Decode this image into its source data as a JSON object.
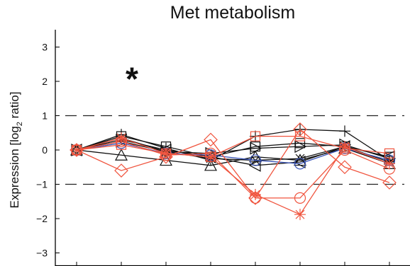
{
  "chart_data": {
    "type": "line",
    "title": "Met metabolism",
    "ylabel_main": "Expression [log",
    "ylabel_sub": "2",
    "ylabel_end": " ratio]",
    "xlabel": "",
    "ylim": [
      -3.4,
      3.5
    ],
    "yticks": [
      3,
      2,
      1,
      0,
      -1,
      -2,
      -3
    ],
    "ytick_labels": [
      "3",
      "2",
      "1",
      "0",
      "−1",
      "−2",
      "−3"
    ],
    "n_points": 8,
    "threshold_lines": [
      1,
      -1
    ],
    "annotation": {
      "text": "*",
      "x": 2.2,
      "y": 2.2
    },
    "colors": {
      "black": "#111111",
      "red": "#f0553f",
      "blue": "#3a55b8",
      "axis": "#000000"
    },
    "series": [
      {
        "color": "#111111",
        "marker": "plus",
        "values": [
          0,
          0.45,
          0.05,
          -0.3,
          0.4,
          0.6,
          0.55,
          -0.3
        ]
      },
      {
        "color": "#111111",
        "marker": "square",
        "values": [
          0,
          0.4,
          0.1,
          -0.2,
          0.1,
          0.2,
          0.1,
          -0.2
        ]
      },
      {
        "color": "#111111",
        "marker": "triangle",
        "values": [
          0,
          -0.15,
          -0.3,
          -0.45,
          -0.2,
          -0.3,
          0.05,
          -0.4
        ]
      },
      {
        "color": "#111111",
        "marker": "tri-left",
        "values": [
          0,
          0.3,
          0,
          -0.2,
          -0.45,
          -0.35,
          0.1,
          -0.2
        ]
      },
      {
        "color": "#111111",
        "marker": "tri-right",
        "values": [
          0,
          0.25,
          -0.05,
          -0.1,
          0.05,
          0.1,
          0.15,
          -0.25
        ]
      },
      {
        "color": "#111111",
        "marker": "x",
        "values": [
          0,
          0.35,
          -0.05,
          -0.25,
          -0.3,
          -0.25,
          0.1,
          -0.35
        ]
      },
      {
        "color": "#3a55b8",
        "marker": "circle",
        "values": [
          0,
          0.2,
          -0.1,
          -0.15,
          -0.3,
          -0.4,
          0.05,
          -0.3
        ]
      },
      {
        "color": "#f0553f",
        "marker": "diamond",
        "values": [
          0,
          -0.6,
          -0.2,
          0.3,
          -1.4,
          0.6,
          -0.5,
          -0.95
        ]
      },
      {
        "color": "#f0553f",
        "marker": "circle",
        "values": [
          0,
          0.25,
          -0.15,
          -0.1,
          -1.4,
          -1.4,
          0,
          -0.55
        ]
      },
      {
        "color": "#f0553f",
        "marker": "asterisk",
        "values": [
          0,
          0.35,
          -0.1,
          -0.2,
          -1.3,
          -1.88,
          0.1,
          -0.4
        ]
      },
      {
        "color": "#f0553f",
        "marker": "square",
        "values": [
          0,
          0.15,
          -0.1,
          -0.2,
          0.4,
          0.4,
          0.05,
          -0.1
        ]
      }
    ]
  }
}
